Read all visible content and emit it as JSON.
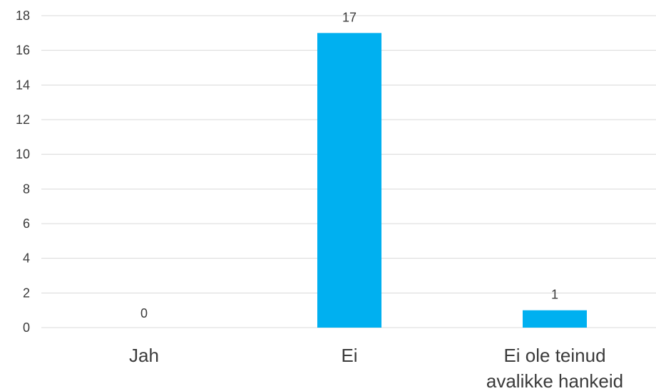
{
  "chart_data": {
    "type": "bar",
    "categories": [
      "Jah",
      "Ei",
      "Ei ole teinud avalikke hankeid"
    ],
    "category_lines": [
      [
        "Jah"
      ],
      [
        "Ei"
      ],
      [
        "Ei ole teinud",
        "avalikke hankeid"
      ]
    ],
    "values": [
      0,
      17,
      1
    ],
    "data_labels": [
      "0",
      "17",
      "1"
    ],
    "ylim": [
      0,
      18
    ],
    "yticks": [
      0,
      2,
      4,
      6,
      8,
      10,
      12,
      14,
      16,
      18
    ],
    "grid": true,
    "legend": "none",
    "colors": {
      "bar": "#00b0f0",
      "grid": "#d9d9d9",
      "text": "#3a3a3a"
    }
  }
}
